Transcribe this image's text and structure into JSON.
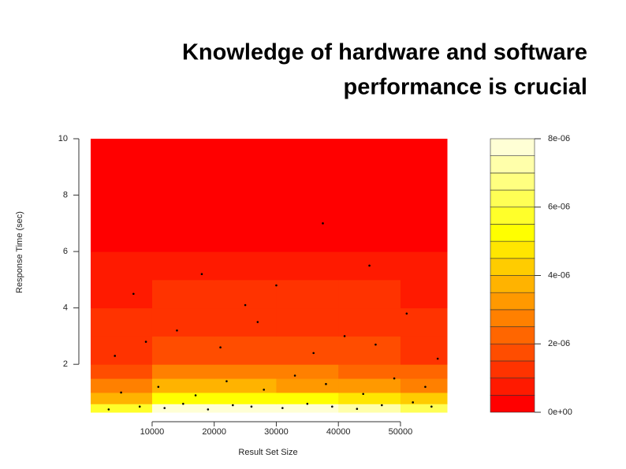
{
  "chart_data": {
    "type": "density",
    "title": "Knowledge of hardware and software performance is crucial",
    "x_label": "Result Set Size",
    "y_label": "Response Time (sec)",
    "xlim": [
      100,
      57500
    ],
    "xticks": [
      10000,
      20000,
      30000,
      40000,
      50000
    ],
    "ylim": [
      0.3,
      10
    ],
    "yticks": [
      2,
      4,
      6,
      8,
      10
    ],
    "zx": [
      100,
      10000,
      20000,
      30000,
      40000,
      50000,
      57500
    ],
    "zy": [
      0.3,
      0.6,
      1,
      1.5,
      2,
      3,
      4,
      5,
      6,
      10
    ],
    "z": [
      [
        5.5e-06,
        7.5e-06,
        7.8e-06,
        7.6e-06,
        7.2e-06,
        6e-06
      ],
      [
        3.5e-06,
        5e-06,
        5.2e-06,
        5e-06,
        4.8e-06,
        4e-06
      ],
      [
        2.5e-06,
        3.5e-06,
        3.6e-06,
        3.4e-06,
        3.3e-06,
        2.8e-06
      ],
      [
        1.8e-06,
        2.5e-06,
        2.6e-06,
        2.5e-06,
        2.4e-06,
        2e-06
      ],
      [
        1.2e-06,
        1.6e-06,
        1.7e-06,
        1.6e-06,
        1.5e-06,
        1.3e-06
      ],
      [
        1e-06,
        1.3e-06,
        1.2e-06,
        1.3e-06,
        1.2e-06,
        1e-06
      ],
      [
        9e-07,
        1.2e-06,
        1.1e-06,
        1.2e-06,
        1.1e-06,
        9e-07
      ],
      [
        6e-07,
        8e-07,
        7e-07,
        8e-07,
        7e-07,
        6e-07
      ],
      [
        1e-07,
        1e-07,
        1e-07,
        1e-07,
        1e-07,
        1e-07
      ]
    ],
    "levels": [
      0,
      5e-07,
      1e-06,
      1.5e-06,
      2e-06,
      2.5e-06,
      3e-06,
      3.5e-06,
      4e-06,
      4.5e-06,
      5e-06,
      5.5e-06,
      6e-06,
      6.5e-06,
      7e-06,
      7.5e-06,
      8e-06
    ],
    "colors": [
      "#ff0000",
      "#ff1a00",
      "#ff3300",
      "#ff4d00",
      "#ff6600",
      "#ff8000",
      "#ff9900",
      "#ffb300",
      "#ffcc00",
      "#ffe600",
      "#ffff00",
      "#ffff2a",
      "#ffff55",
      "#ffff80",
      "#ffffaa",
      "#ffffd5"
    ],
    "zticks": [
      {
        "value": 0,
        "label": "0e+00"
      },
      {
        "value": 2e-06,
        "label": "2e-06"
      },
      {
        "value": 4e-06,
        "label": "4e-06"
      },
      {
        "value": 6e-06,
        "label": "6e-06"
      },
      {
        "value": 8e-06,
        "label": "8e-06"
      }
    ],
    "point_color": "#000000",
    "points": {
      "x": [
        3000,
        8000,
        12000,
        15000,
        19000,
        23000,
        26000,
        31000,
        35000,
        39000,
        43000,
        47000,
        52000,
        55000,
        5000,
        11000,
        17000,
        22000,
        28000,
        33000,
        38000,
        44000,
        49000,
        54000,
        4000,
        9000,
        14000,
        21000,
        27000,
        36000,
        41000,
        46000,
        51000,
        56000,
        7000,
        18000,
        25000,
        37500,
        45000,
        30000
      ],
      "y": [
        0.4,
        0.5,
        0.45,
        0.6,
        0.4,
        0.55,
        0.5,
        0.45,
        0.6,
        0.5,
        0.42,
        0.55,
        0.65,
        0.5,
        1.0,
        1.2,
        0.9,
        1.4,
        1.1,
        1.6,
        1.3,
        0.95,
        1.5,
        1.2,
        2.3,
        2.8,
        3.2,
        2.6,
        3.5,
        2.4,
        3.0,
        2.7,
        3.8,
        2.2,
        4.5,
        5.2,
        4.1,
        7.0,
        5.5,
        4.8
      ]
    }
  }
}
